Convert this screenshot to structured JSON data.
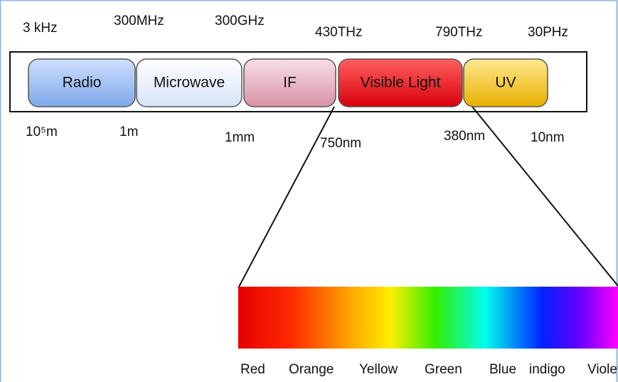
{
  "frequencies": [
    "3 kHz",
    "300MHz",
    "300GHz",
    "430THz",
    "790THz",
    "30PHz"
  ],
  "bands": [
    "Radio",
    "Microwave",
    "IF",
    "Visible Light",
    "UV"
  ],
  "wavelengths": [
    "10⁵m",
    "1m",
    "1mm",
    "750nm",
    "380nm",
    "10nm"
  ],
  "colors": [
    "Red",
    "Orange",
    "Yellow",
    "Green",
    "Blue",
    "indigo",
    "Violet"
  ]
}
